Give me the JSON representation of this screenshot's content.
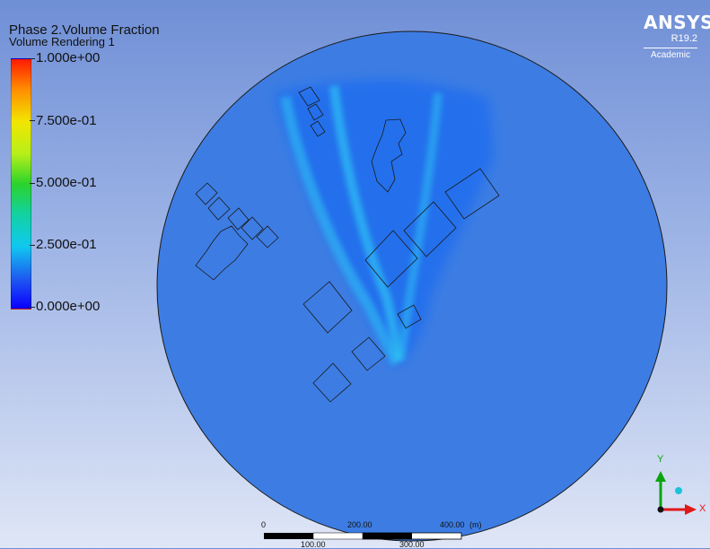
{
  "header": {
    "variable_title": "Phase 2.Volume Fraction",
    "rendering_label": "Volume Rendering 1"
  },
  "legend": {
    "ticks": [
      "1.000e+00",
      "7.500e-01",
      "5.000e-01",
      "2.500e-01",
      "0.000e+00"
    ]
  },
  "branding": {
    "product": "ANSYS",
    "version": "R19.2",
    "edition": "Academic"
  },
  "scale_bar": {
    "top_labels": [
      "0",
      "200.00",
      "400.00"
    ],
    "unit": "(m)",
    "bottom_labels": [
      "100.00",
      "300.00"
    ]
  },
  "axes": {
    "y_label": "Y",
    "x_label": "X"
  },
  "colors": {
    "domain_fill": "#3d7de3",
    "plume_fill": "#1f6cf0",
    "plume_core": "#2ec6f5",
    "axis_y": "#0ca40c",
    "axis_x": "#e01818",
    "axis_z": "#19c4d8"
  }
}
